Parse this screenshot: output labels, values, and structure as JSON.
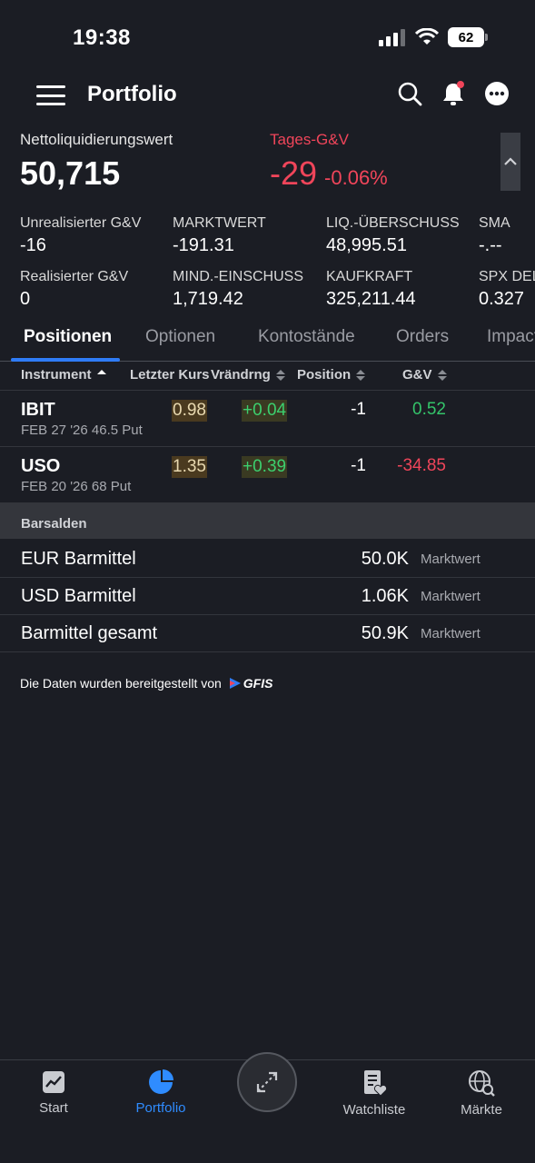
{
  "status_bar": {
    "time": "19:38",
    "battery": "62"
  },
  "topbar": {
    "title": "Portfolio"
  },
  "summary": {
    "net_liq_label": "Nettoliquidierungswert",
    "net_liq_value": "50,715",
    "daily_pl_label": "Tages-G&V",
    "daily_pl_value": "-29",
    "daily_pl_percent": "-0.06%"
  },
  "metrics": [
    {
      "label": "Unrealisierter G&V",
      "value": "-16"
    },
    {
      "label": "MARKTWERT",
      "value": "-191.31"
    },
    {
      "label": "LIQ.-ÜBERSCHUSS",
      "value": "48,995.51"
    },
    {
      "label": "SMA",
      "value": "-.--"
    },
    {
      "label": "Realisierter G&V",
      "value": "0"
    },
    {
      "label": "MIND.-EINSCHUSS",
      "value": "1,719.42"
    },
    {
      "label": "KAUFKRAFT",
      "value": "325,211.44"
    },
    {
      "label": "SPX DELT",
      "value": "0.327"
    }
  ],
  "tabs": [
    "Positionen",
    "Optionen",
    "Kontostände",
    "Orders",
    "Impact"
  ],
  "columns": [
    "Instrument",
    "Letzter Kurs",
    "Vrändrng",
    "Position",
    "G&V"
  ],
  "positions": [
    {
      "symbol": "IBIT",
      "desc": "FEB 27 '26 46.5 Put",
      "last": "0.98",
      "change": "+0.04",
      "position": "-1",
      "pl": "0.52"
    },
    {
      "symbol": "USO",
      "desc": "FEB 20 '26 68 Put",
      "last": "1.35",
      "change": "+0.39",
      "position": "-1",
      "pl": "-34.85"
    }
  ],
  "cash_section": {
    "title": "Barsalden",
    "rows": [
      {
        "label": "EUR Barmittel",
        "value": "50.0K",
        "sub": "Marktwert"
      },
      {
        "label": "USD Barmittel",
        "value": "1.06K",
        "sub": "Marktwert"
      },
      {
        "label": "Barmittel gesamt",
        "value": "50.9K",
        "sub": "Marktwert"
      }
    ]
  },
  "footer": {
    "note": "Die Daten wurden bereitgestellt von",
    "brand": "GFIS"
  },
  "bottom_nav": [
    {
      "label": "Start",
      "icon": "chart-icon"
    },
    {
      "label": "Portfolio",
      "icon": "pie-chart-icon"
    },
    {
      "label": "",
      "icon": "expand-arrows-icon"
    },
    {
      "label": "Watchliste",
      "icon": "watchlist-icon"
    },
    {
      "label": "Märkte",
      "icon": "globe-search-icon"
    }
  ],
  "colors": {
    "accent": "#2f7cf6",
    "negative": "#f0455a",
    "positive": "#34c46a",
    "background": "#1b1d24"
  }
}
